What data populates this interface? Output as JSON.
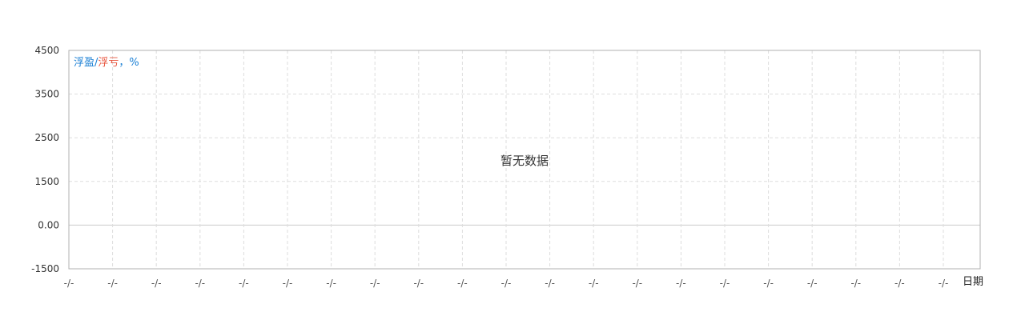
{
  "chart_data": {
    "type": "line",
    "series": [],
    "categories": [
      "-/-",
      "-/-",
      "-/-",
      "-/-",
      "-/-",
      "-/-",
      "-/-",
      "-/-",
      "-/-",
      "-/-",
      "-/-",
      "-/-",
      "-/-",
      "-/-",
      "-/-",
      "-/-",
      "-/-",
      "-/-",
      "-/-",
      "-/-",
      "-/-"
    ],
    "y_ticks": [
      {
        "value": 4500,
        "label": "4500"
      },
      {
        "value": 3500,
        "label": "3500"
      },
      {
        "value": 2500,
        "label": "2500"
      },
      {
        "value": 1500,
        "label": "1500"
      },
      {
        "value": 0,
        "label": "0.00"
      },
      {
        "value": -1500,
        "label": "-1500"
      }
    ],
    "xlabel": "日期",
    "ylabel_parts": [
      {
        "text": "浮盈",
        "color": "#1a7fd4"
      },
      {
        "text": "/",
        "color": "#1a7fd4"
      },
      {
        "text": "浮亏",
        "color": "#e8553e"
      },
      {
        "text": "，%",
        "color": "#1a7fd4"
      }
    ],
    "empty_message": "暂无数据",
    "grid": true,
    "grid_color": "#dddddd",
    "axis_color": "#b0b0b0"
  }
}
